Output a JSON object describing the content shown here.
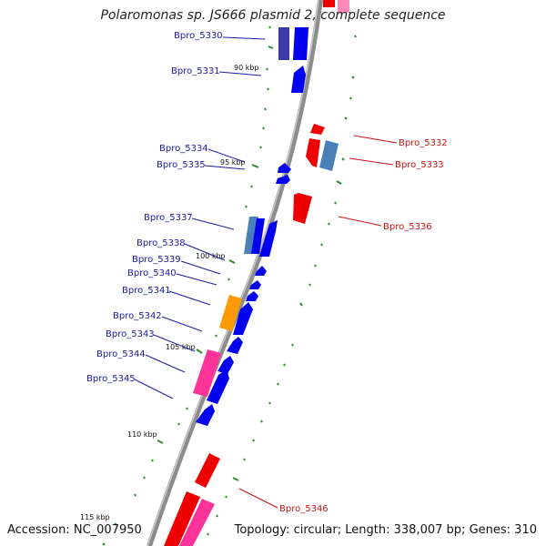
{
  "title": "Polaromonas sp. JS666 plasmid 2, complete sequence",
  "footer": {
    "accession_label": "Accession:",
    "accession": "NC_007950",
    "topology_label": "Topology:",
    "topology": "circular",
    "length_label": "Length:",
    "length": "338,007 bp",
    "genes_label": "Genes:",
    "genes": "310"
  },
  "colors": {
    "backbone": "#8c8c8c",
    "tick": "#2e8b2e",
    "forward_gene": "#0000ee",
    "reverse_gene": "#ee0000",
    "label_forward": "#1a1aa6",
    "label_reverse": "#cc1111",
    "steelblue_gene": "#4a80b8",
    "orange_gene": "#ff9900",
    "pink_gene": "#ff3399"
  },
  "kbp_marks": [
    "90 kbp",
    "95 kbp",
    "100 kbp",
    "105 kbp",
    "110 kbp",
    "115 kbp"
  ],
  "forward_labels": [
    "Bpro_5330",
    "Bpro_5331",
    "Bpro_5334",
    "Bpro_5335",
    "Bpro_5337",
    "Bpro_5338",
    "Bpro_5339",
    "Bpro_5340",
    "Bpro_5341",
    "Bpro_5342",
    "Bpro_5343",
    "Bpro_5344",
    "Bpro_5345"
  ],
  "reverse_labels": [
    "Bpro_5332",
    "Bpro_5333",
    "Bpro_5336",
    "Bpro_5346"
  ]
}
